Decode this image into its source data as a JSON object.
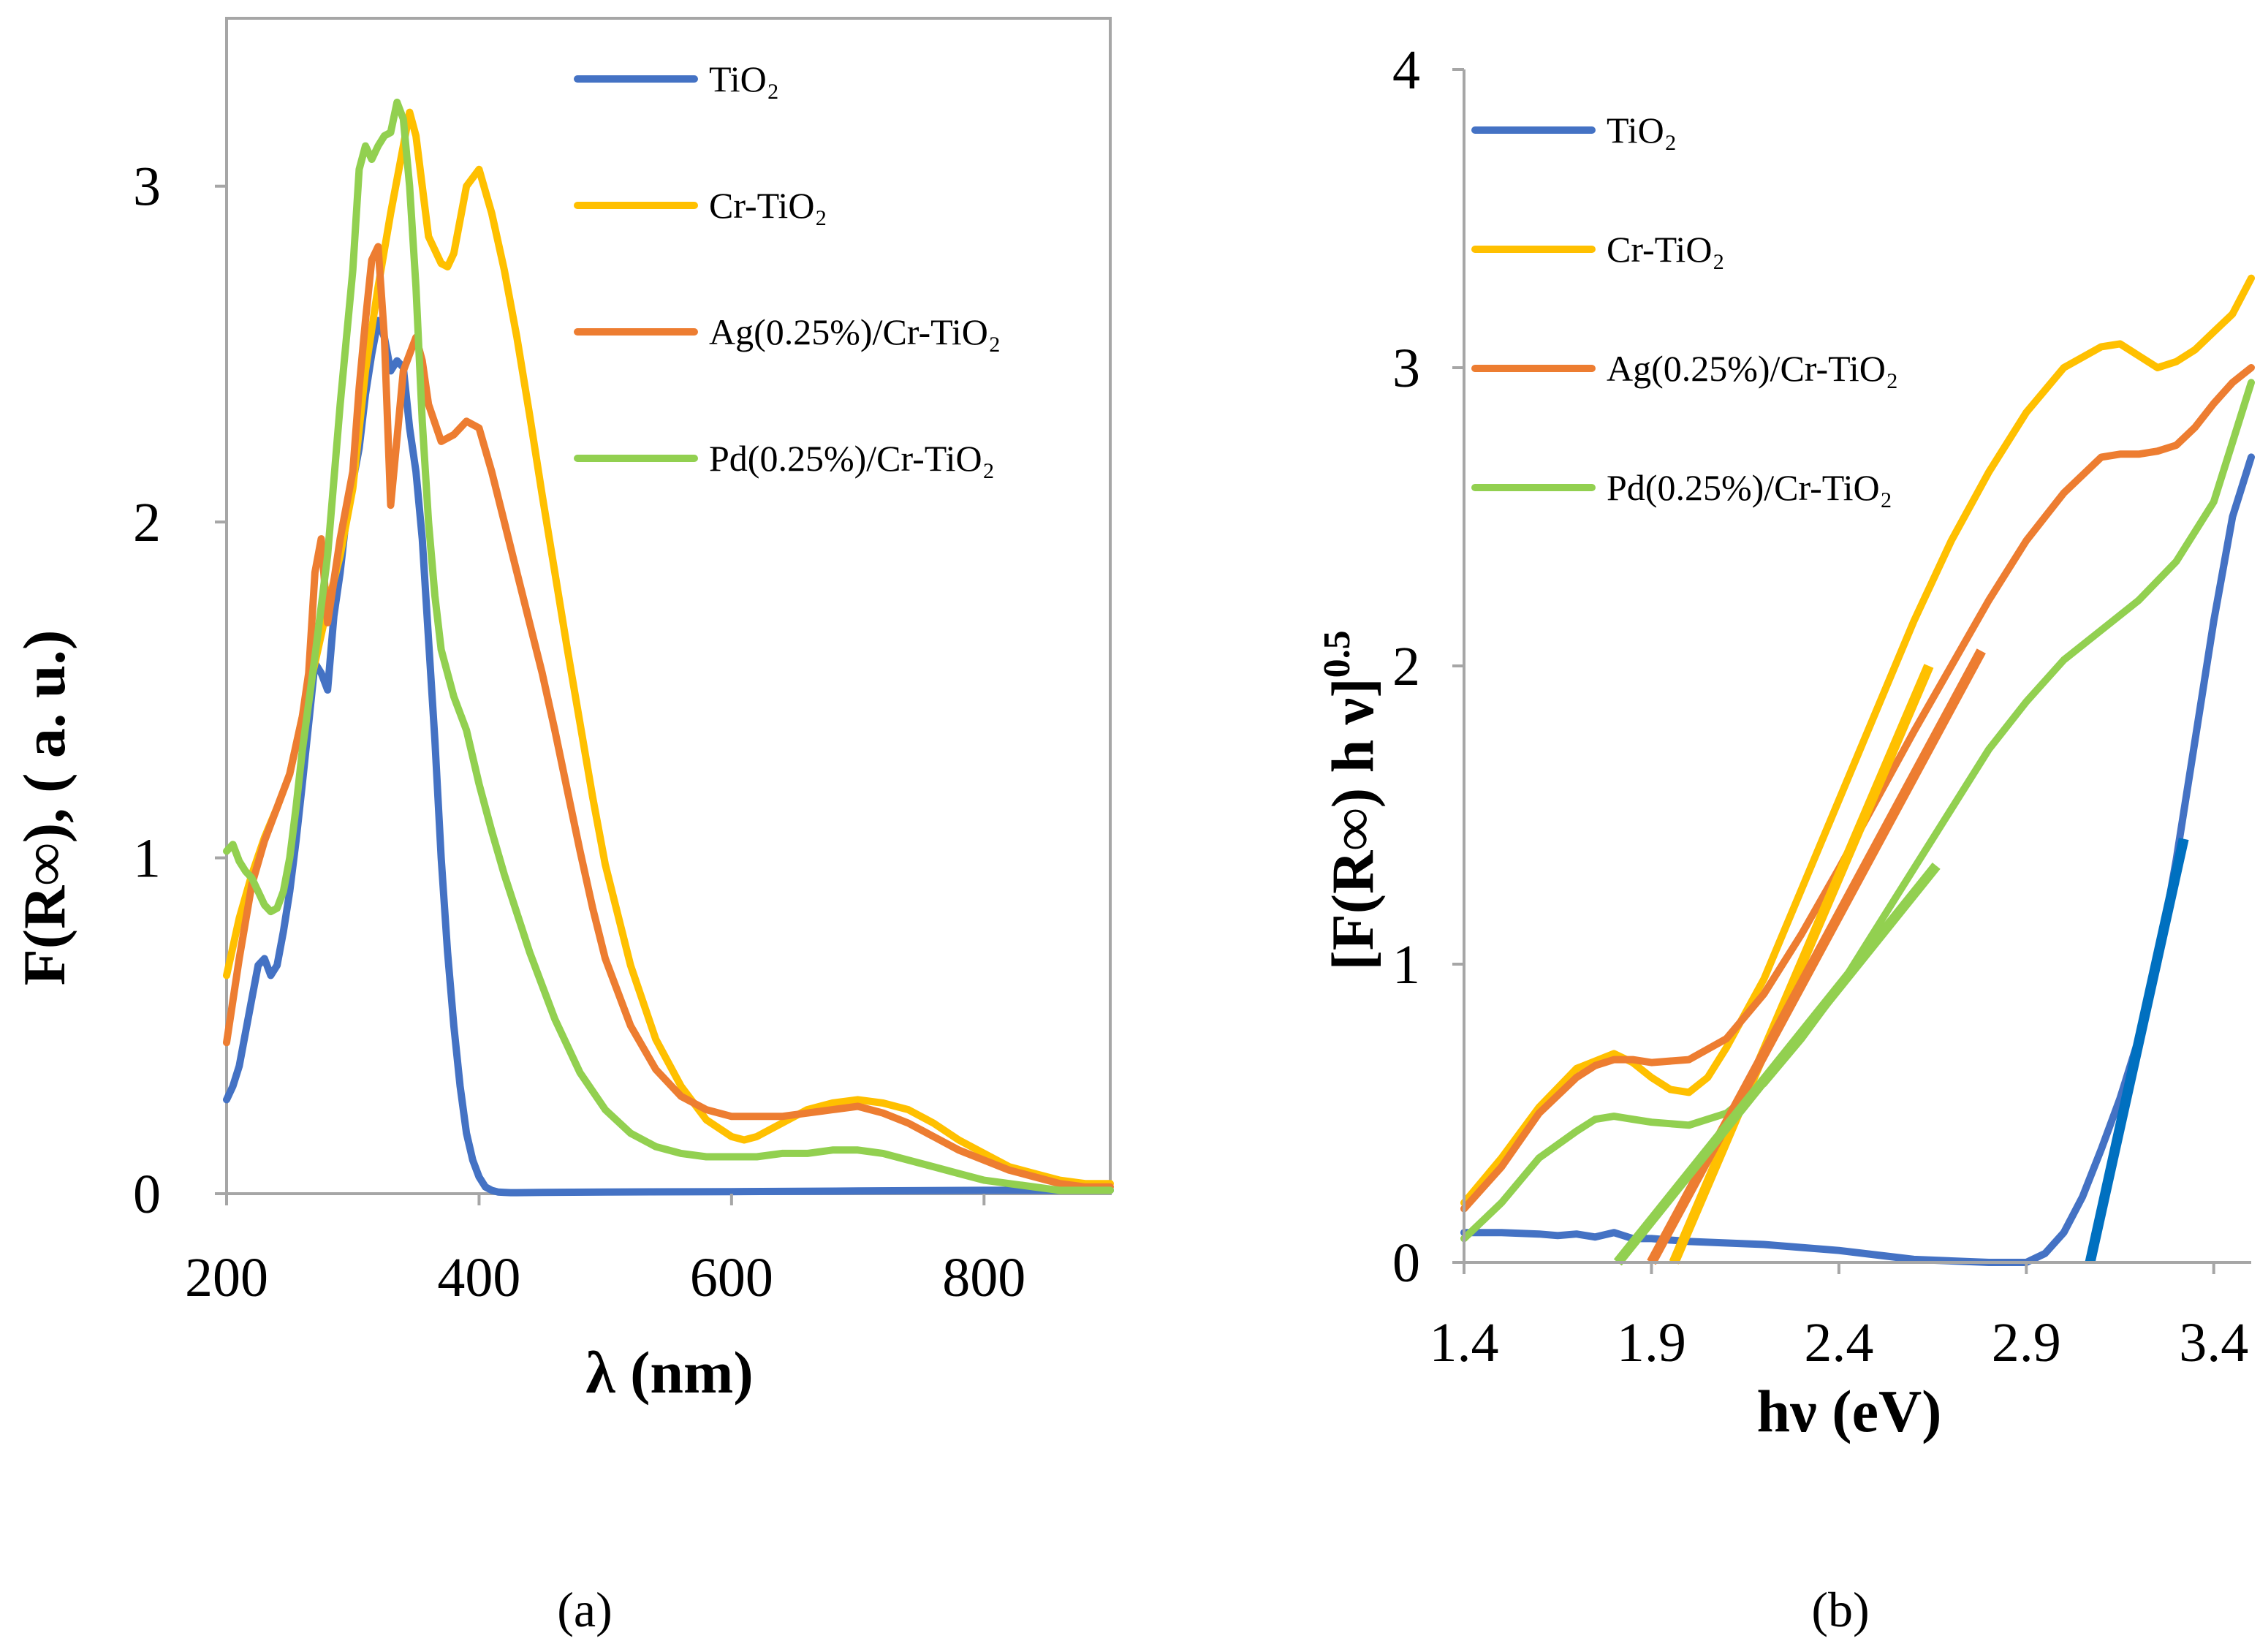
{
  "chart_data": [
    {
      "type": "line",
      "panel_label": "(a)",
      "xlabel": "λ (nm)",
      "ylabel": "F(R∞), ( a. u.)",
      "xlim": [
        200,
        900
      ],
      "ylim": [
        0,
        3.5
      ],
      "xticks": [
        200,
        400,
        600,
        800
      ],
      "yticks": [
        0,
        1,
        2,
        3
      ],
      "legend_position": "top-right",
      "series": [
        {
          "name": "TiO₂",
          "color": "#4472C4",
          "x": [
            200,
            205,
            210,
            215,
            220,
            225,
            230,
            235,
            240,
            245,
            250,
            255,
            260,
            265,
            270,
            275,
            280,
            285,
            290,
            295,
            300,
            305,
            310,
            315,
            320,
            325,
            330,
            335,
            340,
            345,
            350,
            355,
            360,
            365,
            370,
            375,
            380,
            385,
            390,
            395,
            400,
            405,
            410,
            415,
            420,
            425,
            430,
            450,
            500,
            600,
            700,
            800,
            900
          ],
          "y": [
            0.28,
            0.32,
            0.38,
            0.48,
            0.58,
            0.68,
            0.7,
            0.65,
            0.68,
            0.78,
            0.9,
            1.05,
            1.22,
            1.4,
            1.58,
            1.55,
            1.5,
            1.72,
            1.85,
            2.02,
            2.12,
            2.22,
            2.38,
            2.5,
            2.6,
            2.55,
            2.45,
            2.48,
            2.46,
            2.28,
            2.15,
            1.95,
            1.65,
            1.35,
            1.0,
            0.72,
            0.5,
            0.32,
            0.18,
            0.1,
            0.05,
            0.02,
            0.01,
            0.005,
            0.004,
            0.003,
            0.003,
            0.004,
            0.005,
            0.006,
            0.008,
            0.01,
            0.01
          ]
        },
        {
          "name": "Cr-TiO₂",
          "color": "#FFC000",
          "x": [
            200,
            210,
            220,
            230,
            240,
            250,
            260,
            270,
            280,
            290,
            300,
            310,
            320,
            330,
            340,
            345,
            350,
            355,
            360,
            370,
            375,
            380,
            390,
            400,
            410,
            420,
            430,
            440,
            450,
            460,
            470,
            480,
            490,
            500,
            520,
            540,
            560,
            580,
            600,
            610,
            620,
            640,
            660,
            680,
            700,
            720,
            740,
            760,
            780,
            800,
            820,
            840,
            860,
            880,
            900
          ],
          "y": [
            0.65,
            0.82,
            0.95,
            1.06,
            1.15,
            1.25,
            1.42,
            1.58,
            1.75,
            1.9,
            2.1,
            2.45,
            2.7,
            2.92,
            3.12,
            3.22,
            3.15,
            3.0,
            2.85,
            2.77,
            2.76,
            2.8,
            3.0,
            3.05,
            2.92,
            2.75,
            2.55,
            2.32,
            2.08,
            1.85,
            1.62,
            1.4,
            1.18,
            0.98,
            0.68,
            0.46,
            0.32,
            0.22,
            0.17,
            0.16,
            0.17,
            0.21,
            0.25,
            0.27,
            0.28,
            0.27,
            0.25,
            0.21,
            0.16,
            0.12,
            0.08,
            0.06,
            0.04,
            0.03,
            0.03
          ]
        },
        {
          "name": "Ag(0.25%)/Cr-TiO₂",
          "color": "#ED7D31",
          "x": [
            200,
            210,
            220,
            230,
            240,
            250,
            260,
            265,
            270,
            275,
            280,
            290,
            300,
            305,
            310,
            315,
            320,
            325,
            330,
            335,
            340,
            345,
            350,
            355,
            360,
            370,
            380,
            390,
            400,
            410,
            420,
            430,
            440,
            450,
            460,
            470,
            480,
            490,
            500,
            520,
            540,
            560,
            580,
            600,
            620,
            640,
            660,
            680,
            700,
            720,
            740,
            760,
            780,
            800,
            820,
            840,
            860,
            880,
            900
          ],
          "y": [
            0.45,
            0.7,
            0.92,
            1.05,
            1.15,
            1.25,
            1.42,
            1.55,
            1.85,
            1.95,
            1.7,
            1.95,
            2.15,
            2.4,
            2.6,
            2.78,
            2.82,
            2.55,
            2.05,
            2.25,
            2.45,
            2.5,
            2.55,
            2.48,
            2.35,
            2.24,
            2.26,
            2.3,
            2.28,
            2.15,
            2.0,
            1.85,
            1.7,
            1.55,
            1.38,
            1.2,
            1.02,
            0.85,
            0.7,
            0.5,
            0.37,
            0.29,
            0.25,
            0.23,
            0.23,
            0.23,
            0.24,
            0.25,
            0.26,
            0.24,
            0.21,
            0.17,
            0.13,
            0.1,
            0.07,
            0.05,
            0.03,
            0.02,
            0.02
          ]
        },
        {
          "name": "Pd(0.25%)/Cr-TiO₂",
          "color": "#92D050",
          "x": [
            200,
            205,
            210,
            215,
            220,
            225,
            230,
            235,
            240,
            245,
            250,
            255,
            260,
            270,
            280,
            290,
            300,
            305,
            310,
            315,
            320,
            325,
            330,
            335,
            340,
            345,
            350,
            355,
            360,
            365,
            370,
            380,
            390,
            400,
            410,
            420,
            440,
            460,
            480,
            500,
            520,
            540,
            560,
            580,
            600,
            620,
            640,
            660,
            680,
            700,
            720,
            740,
            760,
            780,
            800,
            820,
            840,
            860,
            880,
            900
          ],
          "y": [
            1.02,
            1.04,
            0.99,
            0.96,
            0.94,
            0.9,
            0.86,
            0.84,
            0.85,
            0.9,
            1.0,
            1.15,
            1.32,
            1.6,
            1.9,
            2.35,
            2.75,
            3.05,
            3.12,
            3.08,
            3.12,
            3.15,
            3.16,
            3.25,
            3.2,
            3.0,
            2.7,
            2.3,
            2.0,
            1.78,
            1.62,
            1.48,
            1.38,
            1.22,
            1.08,
            0.95,
            0.72,
            0.52,
            0.36,
            0.25,
            0.18,
            0.14,
            0.12,
            0.11,
            0.11,
            0.11,
            0.12,
            0.12,
            0.13,
            0.13,
            0.12,
            0.1,
            0.08,
            0.06,
            0.04,
            0.03,
            0.02,
            0.01,
            0.01,
            0.01
          ]
        }
      ]
    },
    {
      "type": "line",
      "panel_label": "(b)",
      "xlabel": "hν (eV)",
      "ylabel": "[F(R∞) h ν]",
      "ylabel_sup": "0.5",
      "xlim": [
        1.4,
        3.5
      ],
      "ylim": [
        0,
        4
      ],
      "xticks": [
        1.4,
        1.9,
        2.4,
        2.9,
        3.4
      ],
      "yticks": [
        0,
        1,
        2,
        3,
        4
      ],
      "legend_position": "top-left",
      "series": [
        {
          "name": "TiO₂",
          "color": "#4472C4",
          "x": [
            1.4,
            1.5,
            1.6,
            1.65,
            1.7,
            1.75,
            1.8,
            1.85,
            1.9,
            2.0,
            2.2,
            2.4,
            2.6,
            2.8,
            2.9,
            2.95,
            3.0,
            3.05,
            3.1,
            3.15,
            3.2,
            3.25,
            3.3,
            3.35,
            3.4,
            3.45,
            3.5
          ],
          "y": [
            0.1,
            0.1,
            0.095,
            0.09,
            0.095,
            0.085,
            0.1,
            0.08,
            0.08,
            0.07,
            0.06,
            0.04,
            0.01,
            0.0,
            0.0,
            0.03,
            0.1,
            0.22,
            0.38,
            0.55,
            0.75,
            1.0,
            1.35,
            1.75,
            2.15,
            2.5,
            2.7
          ]
        },
        {
          "name": "Cr-TiO₂",
          "color": "#FFC000",
          "x": [
            1.4,
            1.5,
            1.6,
            1.7,
            1.8,
            1.85,
            1.9,
            1.95,
            2.0,
            2.05,
            2.1,
            2.2,
            2.3,
            2.4,
            2.5,
            2.6,
            2.7,
            2.8,
            2.9,
            3.0,
            3.1,
            3.15,
            3.2,
            3.25,
            3.3,
            3.35,
            3.4,
            3.45,
            3.5
          ],
          "y": [
            0.2,
            0.35,
            0.52,
            0.65,
            0.7,
            0.67,
            0.62,
            0.58,
            0.57,
            0.62,
            0.72,
            0.95,
            1.25,
            1.55,
            1.85,
            2.15,
            2.42,
            2.65,
            2.85,
            3.0,
            3.07,
            3.08,
            3.04,
            3.0,
            3.02,
            3.06,
            3.12,
            3.18,
            3.3
          ]
        },
        {
          "name": "Ag(0.25%)/Cr-TiO₂",
          "color": "#ED7D31",
          "x": [
            1.4,
            1.5,
            1.6,
            1.7,
            1.75,
            1.8,
            1.85,
            1.9,
            2.0,
            2.1,
            2.2,
            2.3,
            2.4,
            2.5,
            2.6,
            2.7,
            2.8,
            2.9,
            3.0,
            3.1,
            3.15,
            3.2,
            3.25,
            3.3,
            3.35,
            3.4,
            3.45,
            3.5
          ],
          "y": [
            0.18,
            0.32,
            0.5,
            0.62,
            0.66,
            0.68,
            0.68,
            0.67,
            0.68,
            0.75,
            0.9,
            1.1,
            1.32,
            1.55,
            1.78,
            2.0,
            2.22,
            2.42,
            2.58,
            2.7,
            2.71,
            2.71,
            2.72,
            2.74,
            2.8,
            2.88,
            2.95,
            3.0
          ]
        },
        {
          "name": "Pd(0.25%)/Cr-TiO₂",
          "color": "#92D050",
          "x": [
            1.4,
            1.5,
            1.6,
            1.7,
            1.75,
            1.8,
            1.85,
            1.9,
            2.0,
            2.1,
            2.2,
            2.3,
            2.4,
            2.5,
            2.6,
            2.7,
            2.8,
            2.9,
            3.0,
            3.1,
            3.2,
            3.3,
            3.4,
            3.45,
            3.5
          ],
          "y": [
            0.08,
            0.2,
            0.35,
            0.44,
            0.48,
            0.49,
            0.48,
            0.47,
            0.46,
            0.5,
            0.6,
            0.75,
            0.92,
            1.12,
            1.32,
            1.52,
            1.72,
            1.88,
            2.02,
            2.12,
            2.22,
            2.35,
            2.55,
            2.75,
            2.95
          ]
        }
      ],
      "fit_lines": [
        {
          "series": "TiO₂",
          "color": "#0070C0",
          "x": [
            3.07,
            3.32
          ],
          "y": [
            0.0,
            1.42
          ]
        },
        {
          "series": "Cr-TiO₂",
          "color": "#FFC000",
          "x": [
            1.96,
            2.64
          ],
          "y": [
            0.0,
            2.0
          ]
        },
        {
          "series": "Ag(0.25%)/Cr-TiO₂",
          "color": "#ED7D31",
          "x": [
            1.9,
            2.78
          ],
          "y": [
            0.0,
            2.05
          ]
        },
        {
          "series": "Pd(0.25%)/Cr-TiO₂",
          "color": "#92D050",
          "x": [
            1.81,
            2.66
          ],
          "y": [
            0.0,
            1.33
          ]
        }
      ]
    }
  ]
}
